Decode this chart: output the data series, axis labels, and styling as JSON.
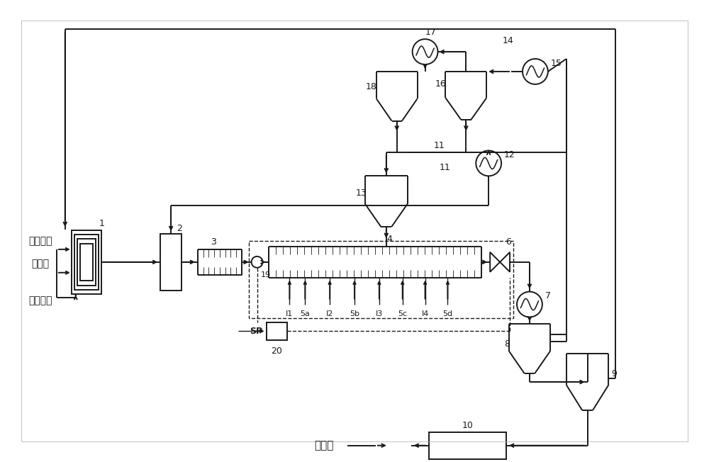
{
  "bg_color": "#ffffff",
  "line_color": "#1a1a1a",
  "figsize": [
    10.0,
    6.52
  ],
  "dpi": 100,
  "labels": {
    "fresh_ethylene": "新鲜乙烯",
    "modifier": "改性剂",
    "comonomer": "共聚单体",
    "polymer": "聚合物"
  }
}
